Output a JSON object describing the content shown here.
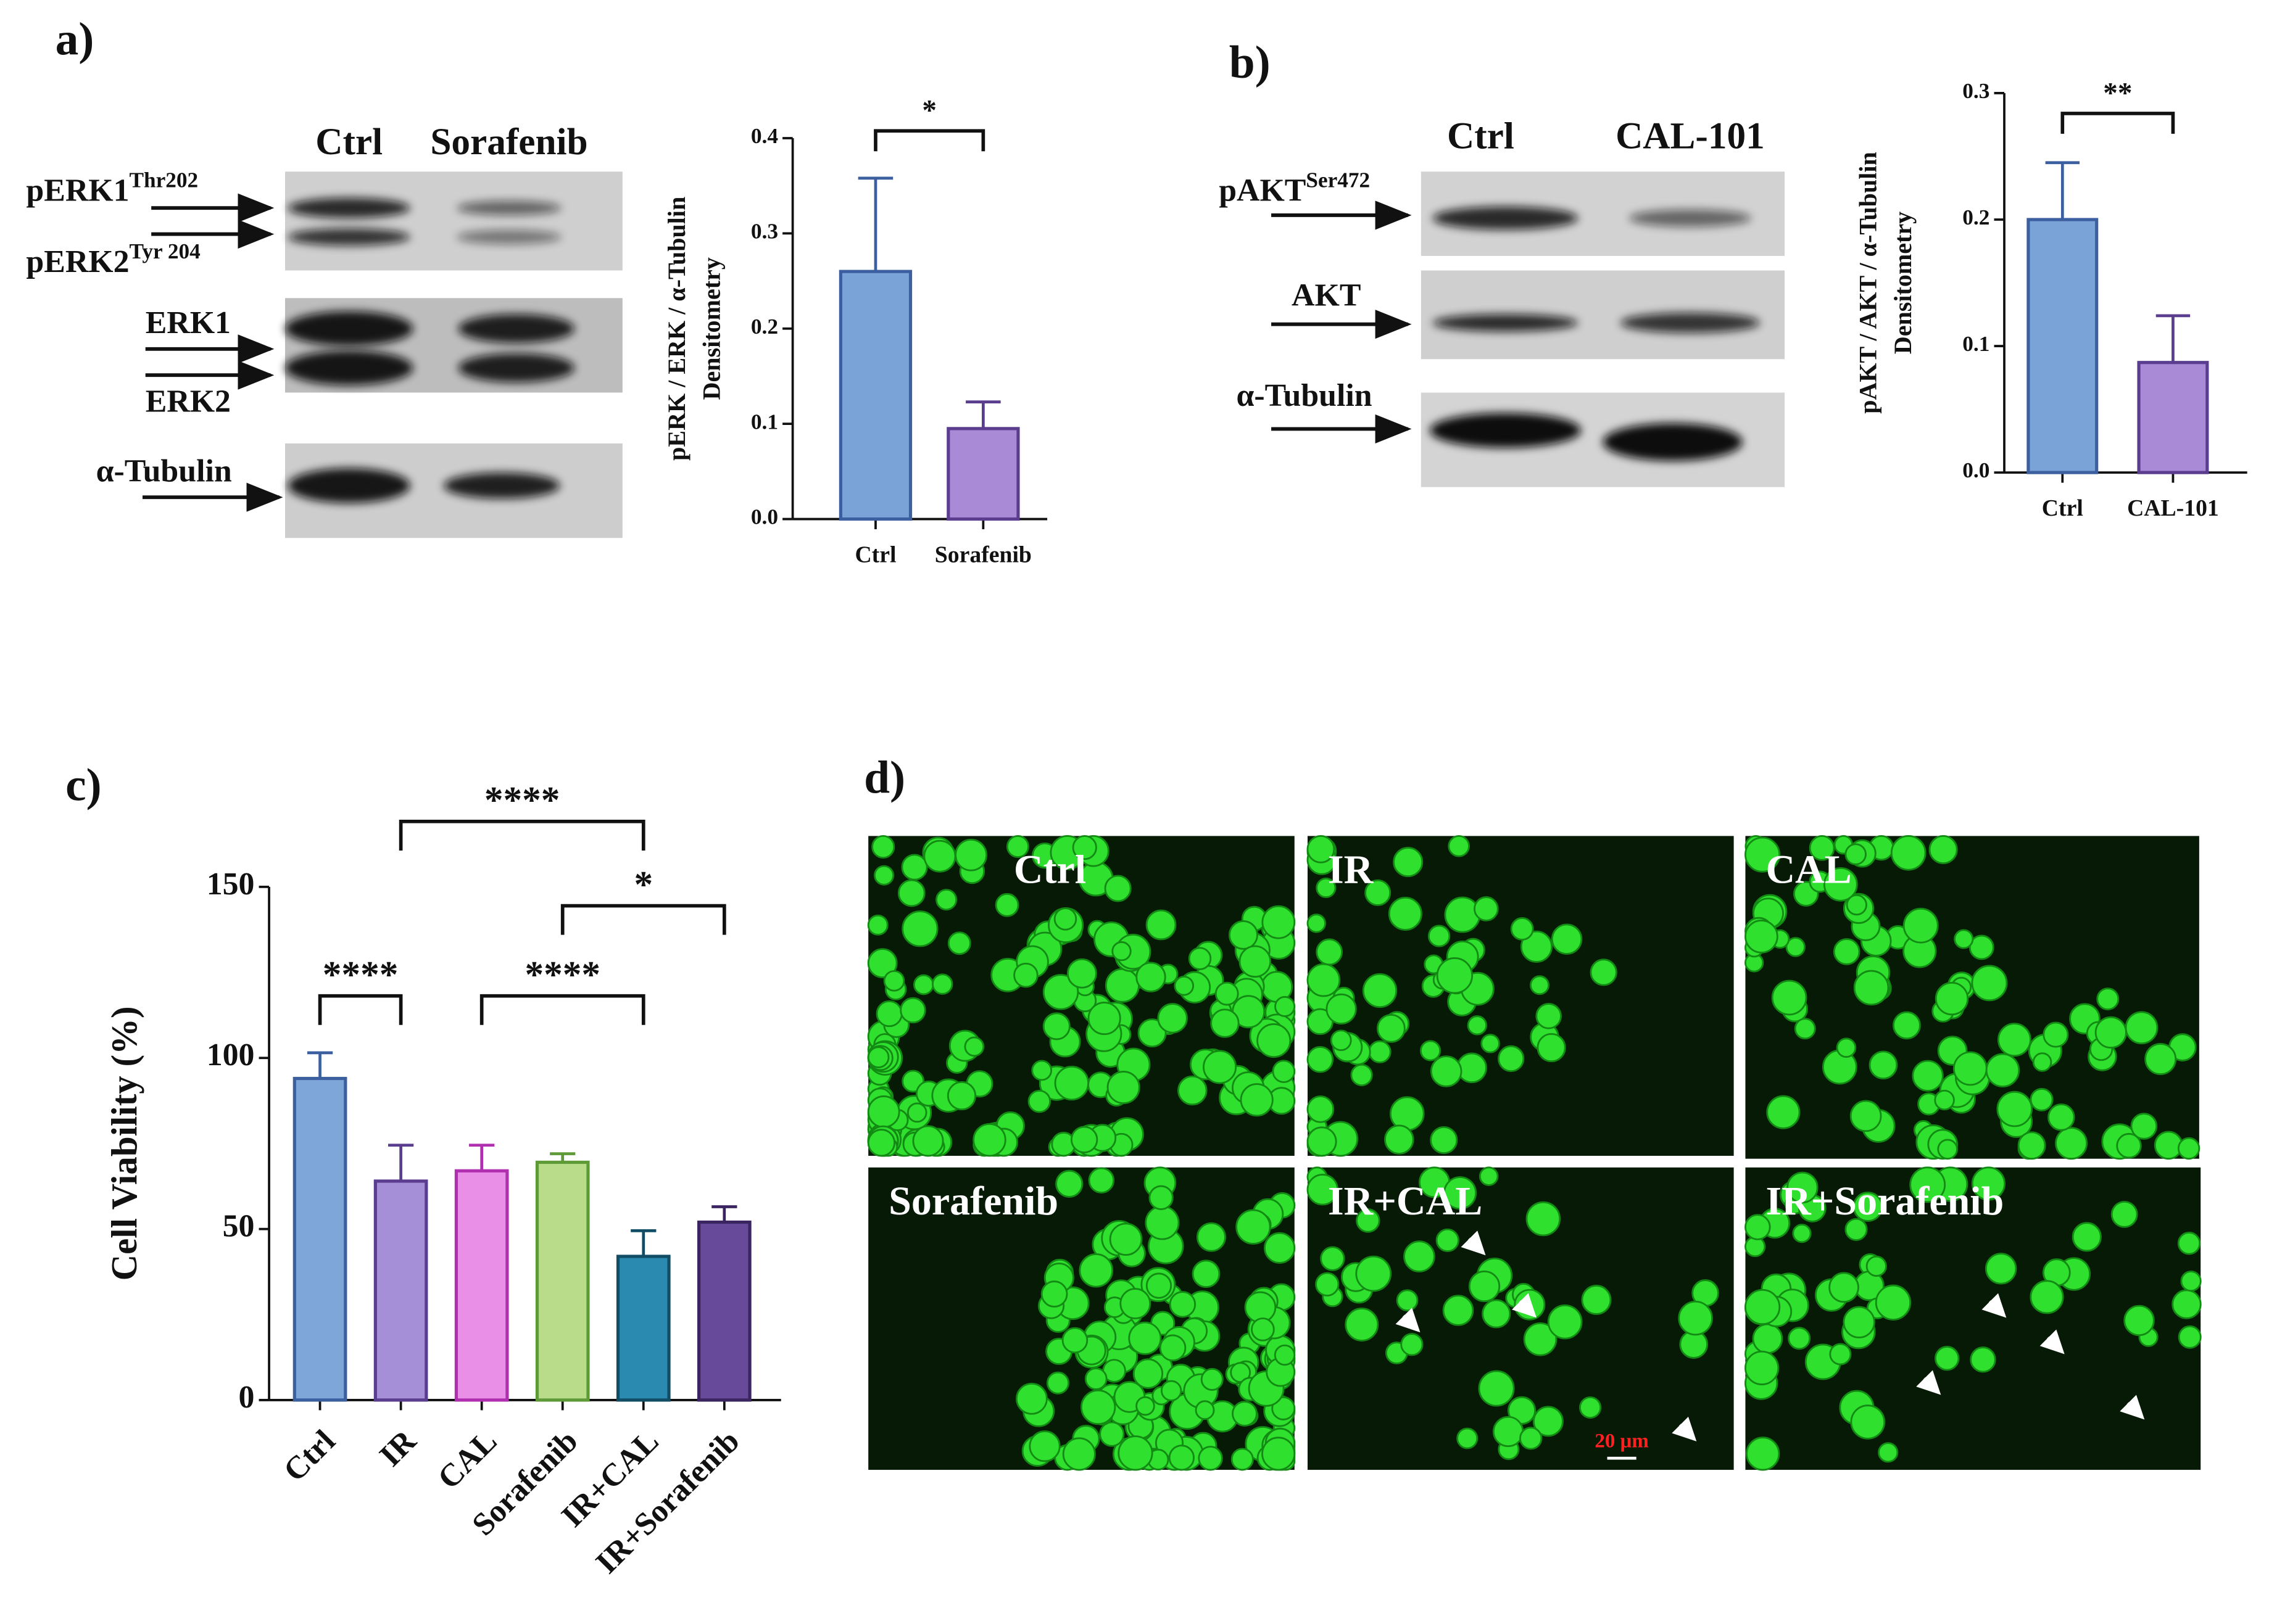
{
  "panel_labels": [
    "a)",
    "b)",
    "c)",
    "d)"
  ],
  "blot_a": {
    "lanes": [
      "Ctrl",
      "Sorafenib"
    ],
    "bands": [
      {
        "name": "pERK1",
        "sup": "Thr202"
      },
      {
        "name": "pERK2",
        "sup": "Tyr 204"
      },
      {
        "name": "ERK1"
      },
      {
        "name": "ERK2"
      },
      {
        "name": "α-Tubulin"
      }
    ]
  },
  "blot_b": {
    "lanes": [
      "Ctrl",
      "CAL-101"
    ],
    "bands": [
      {
        "name": "pAKT",
        "sup": "Ser472"
      },
      {
        "name": "AKT"
      },
      {
        "name": "α-Tubulin"
      }
    ]
  },
  "micrographs": {
    "labels": [
      "Ctrl",
      "IR",
      "CAL",
      "Sorafenib",
      "IR+CAL",
      "IR+Sorafenib"
    ],
    "scale_bar": "20 μm"
  },
  "chart_data": [
    {
      "type": "bar",
      "y_label": [
        "pERK / ERK / α-Tubulin",
        "Densitometry"
      ],
      "categories": [
        "Ctrl",
        "Sorafenib"
      ],
      "values": [
        0.26,
        0.095
      ],
      "errors": [
        0.098,
        0.028
      ],
      "colors": [
        "#7aa3d8",
        "#a98ad6"
      ],
      "edge_colors": [
        "#3c5fa0",
        "#5b3d8f"
      ],
      "ylim": [
        0,
        0.4
      ],
      "yticks": [
        {
          "value": 0,
          "label": "0.0"
        },
        0.1,
        0.2,
        0.3,
        0.4
      ],
      "significance": [
        {
          "from": 0,
          "to": 1,
          "label": "*"
        }
      ]
    },
    {
      "type": "bar",
      "y_label": [
        "pAKT / AKT / α-Tubulin",
        "Densitometry"
      ],
      "categories": [
        "Ctrl",
        "CAL-101"
      ],
      "values": [
        0.2,
        0.087
      ],
      "errors": [
        0.045,
        0.037
      ],
      "colors": [
        "#7aa3d8",
        "#a98ad6"
      ],
      "edge_colors": [
        "#3c5fa0",
        "#5b3d8f"
      ],
      "ylim": [
        0,
        0.3
      ],
      "yticks": [
        {
          "value": 0,
          "label": "0.0"
        },
        0.1,
        0.2,
        0.3
      ],
      "significance": [
        {
          "from": 0,
          "to": 1,
          "label": "**"
        }
      ]
    },
    {
      "type": "bar",
      "y_label": [
        "Cell Viability (%)"
      ],
      "categories": [
        "Ctrl",
        "IR",
        "CAL",
        "Sorafenib",
        "IR+CAL",
        "IR+Sorafenib"
      ],
      "values": [
        94,
        64,
        67,
        69.5,
        42,
        52
      ],
      "errors": [
        7.5,
        10.5,
        7.5,
        2.5,
        7.5,
        4.5
      ],
      "colors": [
        "#7fa6d9",
        "#a58fd6",
        "#ea8fe8",
        "#b8dc8a",
        "#2a8ab0",
        "#674a9a"
      ],
      "edge_colors": [
        "#3c5fa0",
        "#5b3d8f",
        "#b02fb0",
        "#5e9a35",
        "#124d66",
        "#3a2560"
      ],
      "ylim": [
        0,
        150
      ],
      "yticks": [
        0,
        50,
        100,
        150
      ],
      "significance": [
        {
          "from": 0,
          "to": 1,
          "label": "****"
        },
        {
          "from": 1,
          "to": 4,
          "label": "****"
        },
        {
          "from": 2,
          "to": 4,
          "label": "****"
        },
        {
          "from": 3,
          "to": 5,
          "label": "*"
        }
      ]
    }
  ]
}
